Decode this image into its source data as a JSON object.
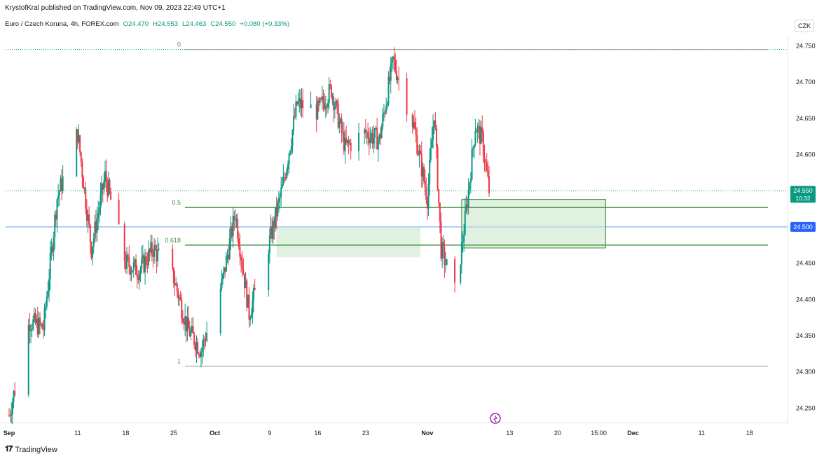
{
  "header": {
    "published_line": "KrystofKral published on TradingView.com, Nov 09, 2023 22:49 UTC+1",
    "symbol": "Euro / Czech Koruna, 4h, FOREX.com",
    "open": "O24.470",
    "high": "H24.553",
    "low": "L24.463",
    "close": "C24.550",
    "change": "+0.080 (+0.33%)",
    "currency_button": "CZK"
  },
  "footer": {
    "brand": "TradingView",
    "logo": "tradingview-logo"
  },
  "colors": {
    "up": "#089981",
    "down": "#f23645",
    "fib": "#388e3c",
    "zone_fill": "#c8e6c9",
    "blue_line": "#5b9cf6",
    "price_tag": "#089981",
    "level_tag": "#2962ff"
  },
  "price_tag": {
    "price": "24.550",
    "countdown": "10:32"
  },
  "level_tag": {
    "price": "24.500"
  },
  "chart_data": {
    "type": "candlestick",
    "interval": "4h",
    "ylim": [
      24.23,
      24.765
    ],
    "y_ticks": [
      "24.750",
      "24.700",
      "24.650",
      "24.600",
      "24.550",
      "24.500",
      "24.450",
      "24.400",
      "24.350",
      "24.300",
      "24.250"
    ],
    "x_ticks": [
      {
        "label": "Sep",
        "date": "2023-09-01"
      },
      {
        "label": "11",
        "date": "2023-09-11"
      },
      {
        "label": "18",
        "date": "2023-09-18"
      },
      {
        "label": "25",
        "date": "2023-09-25"
      },
      {
        "label": "Oct",
        "date": "2023-10-01"
      },
      {
        "label": "9",
        "date": "2023-10-09"
      },
      {
        "label": "16",
        "date": "2023-10-16"
      },
      {
        "label": "23",
        "date": "2023-10-23"
      },
      {
        "label": "Nov",
        "date": "2023-11-01"
      },
      {
        "label": "13",
        "date": "2023-11-13"
      },
      {
        "label": "20",
        "date": "2023-11-20"
      },
      {
        "label": "15:00",
        "date": "2023-11-26"
      },
      {
        "label": "Dec",
        "date": "2023-12-01"
      },
      {
        "label": "11",
        "date": "2023-12-11"
      },
      {
        "label": "18",
        "date": "2023-12-18"
      }
    ],
    "fib_levels": [
      {
        "label": "0",
        "price": 24.745
      },
      {
        "label": "0.5",
        "price": 24.527
      },
      {
        "label": "0.618",
        "price": 24.475
      },
      {
        "label": "1",
        "price": 24.308
      }
    ],
    "zones": [
      {
        "from": "2023-10-10",
        "to": "2023-10-31",
        "low": 24.458,
        "high": 24.5
      },
      {
        "from": "2023-11-06",
        "to": "2023-11-27",
        "low": 24.471,
        "high": 24.538
      }
    ],
    "horizontal_lines": [
      {
        "price": 24.5,
        "style": "solid",
        "color": "#5b9cf6"
      },
      {
        "price": 24.55,
        "style": "dotted",
        "color": "#089981"
      },
      {
        "price": 24.745,
        "style": "dotted",
        "color": "#089981"
      }
    ],
    "anchors": [
      {
        "date": "2023-09-01",
        "price": 24.24
      },
      {
        "date": "2023-09-04",
        "price": 24.37
      },
      {
        "date": "2023-09-06",
        "price": 24.36
      },
      {
        "date": "2023-09-08",
        "price": 24.54
      },
      {
        "date": "2023-09-11",
        "price": 24.63
      },
      {
        "date": "2023-09-12",
        "price": 24.55
      },
      {
        "date": "2023-09-13",
        "price": 24.47
      },
      {
        "date": "2023-09-15",
        "price": 24.57
      },
      {
        "date": "2023-09-18",
        "price": 24.45
      },
      {
        "date": "2023-09-20",
        "price": 24.44
      },
      {
        "date": "2023-09-22",
        "price": 24.47
      },
      {
        "date": "2023-09-25",
        "price": 24.43
      },
      {
        "date": "2023-09-27",
        "price": 24.36
      },
      {
        "date": "2023-09-29",
        "price": 24.33
      },
      {
        "date": "2023-10-02",
        "price": 24.42
      },
      {
        "date": "2023-10-04",
        "price": 24.52
      },
      {
        "date": "2023-10-05",
        "price": 24.45
      },
      {
        "date": "2023-10-06",
        "price": 24.38
      },
      {
        "date": "2023-10-09",
        "price": 24.48
      },
      {
        "date": "2023-10-11",
        "price": 24.56
      },
      {
        "date": "2023-10-13",
        "price": 24.67
      },
      {
        "date": "2023-10-16",
        "price": 24.66
      },
      {
        "date": "2023-10-18",
        "price": 24.69
      },
      {
        "date": "2023-10-20",
        "price": 24.61
      },
      {
        "date": "2023-10-23",
        "price": 24.63
      },
      {
        "date": "2023-10-25",
        "price": 24.62
      },
      {
        "date": "2023-10-27",
        "price": 24.73
      },
      {
        "date": "2023-10-30",
        "price": 24.64
      },
      {
        "date": "2023-11-01",
        "price": 24.54
      },
      {
        "date": "2023-11-02",
        "price": 24.66
      },
      {
        "date": "2023-11-03",
        "price": 24.47
      },
      {
        "date": "2023-11-05",
        "price": 24.41
      },
      {
        "date": "2023-11-06",
        "price": 24.47
      },
      {
        "date": "2023-11-07",
        "price": 24.55
      },
      {
        "date": "2023-11-08",
        "price": 24.64
      },
      {
        "date": "2023-11-09",
        "price": 24.62
      },
      {
        "date": "2023-11-10",
        "price": 24.55
      }
    ]
  }
}
